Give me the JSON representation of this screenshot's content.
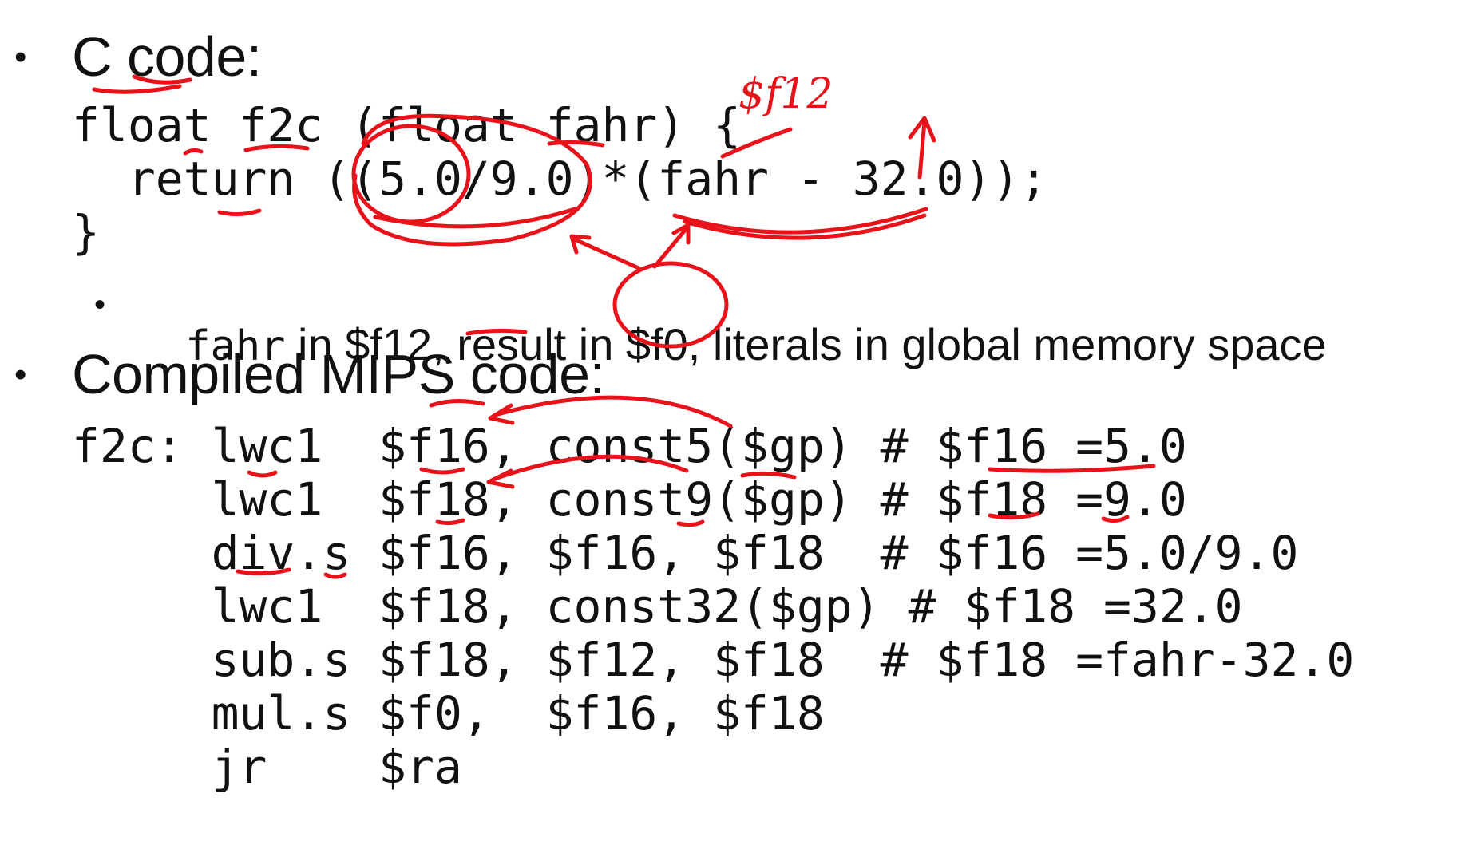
{
  "section_c": {
    "bullet": "•",
    "heading": "C code:",
    "code_lines": [
      "float f2c (float fahr) {",
      "  return ((5.0/9.0)*(fahr - 32.0));",
      "}"
    ],
    "note": {
      "bullet": "•",
      "prefix_mono": "fahr",
      "text": " in $f12, result in $f0, literals in global memory space"
    }
  },
  "section_mips": {
    "bullet": "•",
    "heading": "Compiled MIPS code:",
    "code_lines": [
      "f2c: lwc1  $f16, const5($gp) # $f16 =5.0",
      "     lwc1  $f18, const9($gp) # $f18 =9.0",
      "     div.s $f16, $f16, $f18  # $f16 =5.0/9.0",
      "     lwc1  $f18, const32($gp) # $f18 =32.0",
      "     sub.s $f18, $f12, $f18  # $f18 =fahr-32.0",
      "     mul.s $f0,  $f16, $f18",
      "     jr    $ra"
    ]
  },
  "annotations": {
    "color": "#e8121a",
    "handwritten_label": "$f12"
  }
}
